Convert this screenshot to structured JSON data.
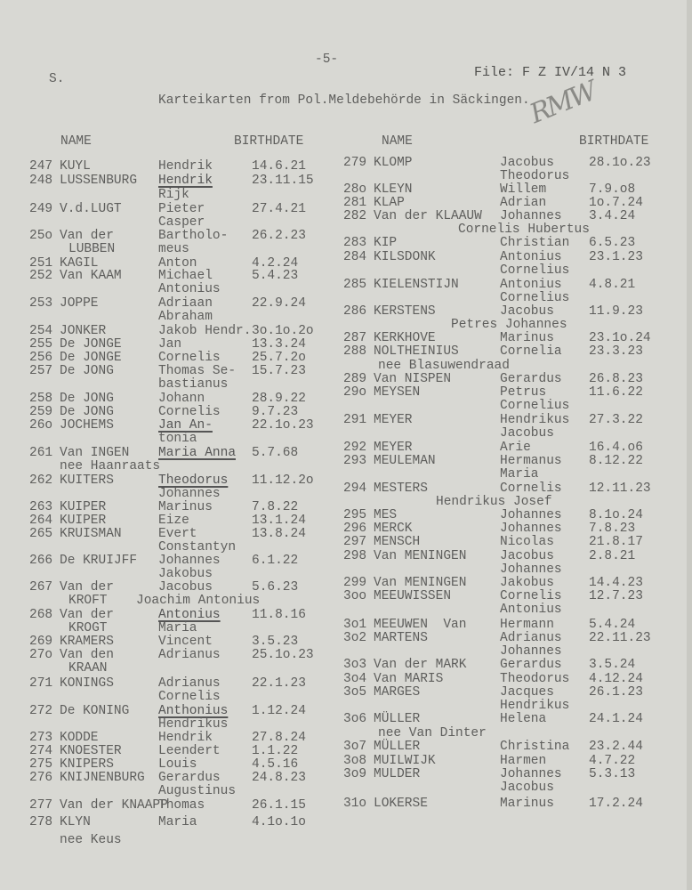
{
  "header": {
    "section_mark": "S.",
    "page_number": "-5-",
    "file_ref": "File: F Z IV/14 N 3",
    "title": "Karteikarten from Pol.Meldebehörde in Säckingen.",
    "handwritten_initials": "RMW"
  },
  "column_headers": {
    "left_name": "NAME",
    "left_birthdate": "BIRTHDATE",
    "right_name": "NAME",
    "right_birthdate": "BIRTHDATE"
  },
  "left_column": [
    {
      "no": "247",
      "surname": "KUYL",
      "given": "Hendrik",
      "birthdate": "14.6.21"
    },
    {
      "no": "248",
      "surname": "LUSSENBURG",
      "given": "Hendrik",
      "birthdate": "23.11.15",
      "underlined": true,
      "lines": [
        {
          "given": "Rijk"
        }
      ]
    },
    {
      "no": "249",
      "surname": "V.d.LUGT",
      "given": "Pieter",
      "birthdate": "27.4.21",
      "lines": [
        {
          "given": "Casper"
        }
      ]
    },
    {
      "no": "25o",
      "surname": "Van der",
      "given": "Bartholo-",
      "birthdate": "26.2.23",
      "lines": [
        {
          "surname": "LUBBEN",
          "given": "meus"
        }
      ]
    },
    {
      "no": "251",
      "surname": "KAGIL",
      "given": "Anton",
      "birthdate": "4.2.24"
    },
    {
      "no": "252",
      "surname": "Van KAAM",
      "given": "Michael",
      "birthdate": "5.4.23",
      "lines": [
        {
          "given": "Antonius"
        }
      ]
    },
    {
      "no": "253",
      "surname": "JOPPE",
      "given": "Adriaan",
      "birthdate": "22.9.24",
      "lines": [
        {
          "given": "Abraham"
        }
      ]
    },
    {
      "no": "254",
      "surname": "JONKER",
      "given": "Jakob Hendr.",
      "birthdate": "3o.1o.2o"
    },
    {
      "no": "255",
      "surname": "De JONGE",
      "given": "Jan",
      "birthdate": "13.3.24"
    },
    {
      "no": "256",
      "surname": "De JONGE",
      "given": "Cornelis",
      "birthdate": "25.7.2o"
    },
    {
      "no": "257",
      "surname": "De JONG",
      "given": "Thomas Se-",
      "birthdate": "15.7.23",
      "lines": [
        {
          "given": "bastianus"
        }
      ]
    },
    {
      "no": "258",
      "surname": "De JONG",
      "given": "Johann",
      "birthdate": "28.9.22"
    },
    {
      "no": "259",
      "surname": "De JONG",
      "given": "Cornelis",
      "birthdate": "9.7.23"
    },
    {
      "no": "26o",
      "surname": "JOCHEMS",
      "given": "Jan An-",
      "birthdate": "22.1o.23",
      "underlined": true,
      "lines": [
        {
          "given": "tonia"
        }
      ]
    },
    {
      "no": "261",
      "surname": "Van INGEN",
      "given": "Maria Anna",
      "birthdate": "5.7.68",
      "underlined": true,
      "lines": [
        {
          "maiden_name": "nee Haanraats"
        }
      ]
    },
    {
      "no": "262",
      "surname": "KUITERS",
      "given": "Theodorus",
      "birthdate": "11.12.2o",
      "underlined": true,
      "lines": [
        {
          "given": "Johannes"
        }
      ]
    },
    {
      "no": "263",
      "surname": "KUIPER",
      "given": "Marinus",
      "birthdate": "7.8.22"
    },
    {
      "no": "264",
      "surname": "KUIPER",
      "given": "Eize",
      "birthdate": "13.1.24"
    },
    {
      "no": "265",
      "surname": "KRUISMAN",
      "given": "Evert",
      "birthdate": "13.8.24",
      "lines": [
        {
          "given": "Constantyn"
        }
      ]
    },
    {
      "no": "266",
      "surname": "De KRUIJFF",
      "given": "Johannes",
      "birthdate": "6.1.22",
      "lines": [
        {
          "given": "Jakobus"
        }
      ]
    },
    {
      "no": "267",
      "surname": "Van der",
      "given": "Jacobus",
      "birthdate": "5.6.23",
      "lines": [
        {
          "surname": "KROFT",
          "given_wide": "Joachim Antonius"
        }
      ]
    },
    {
      "no": "268",
      "surname": "Van der",
      "given": "Antonius",
      "birthdate": "11.8.16",
      "underlined": true,
      "lines": [
        {
          "surname": "KROGT",
          "given": "Maria"
        }
      ]
    },
    {
      "no": "269",
      "surname": "KRAMERS",
      "given": "Vincent",
      "birthdate": "3.5.23"
    },
    {
      "no": "27o",
      "surname": "Van den",
      "given": "Adrianus",
      "birthdate": "25.1o.23",
      "lines": [
        {
          "surname": "KRAAN"
        }
      ]
    },
    {
      "no": "271",
      "surname": "KONINGS",
      "given": "Adrianus",
      "birthdate": "22.1.23",
      "lines": [
        {
          "given": "Cornelis"
        }
      ]
    },
    {
      "no": "272",
      "surname": "De KONING",
      "given": "Anthonius",
      "birthdate": "1.12.24",
      "underlined": true,
      "lines": [
        {
          "given": "Hendrikus"
        }
      ]
    },
    {
      "no": "273",
      "surname": "KODDE",
      "given": "Hendrik",
      "birthdate": "27.8.24"
    },
    {
      "no": "274",
      "surname": "KNOESTER",
      "given": "Leendert",
      "birthdate": "1.1.22"
    },
    {
      "no": "275",
      "surname": "KNIPERS",
      "given": "Louis",
      "birthdate": "4.5.16"
    },
    {
      "no": "276",
      "surname": "KNIJNENBURG",
      "given": "Gerardus",
      "birthdate": "24.8.23",
      "lines": [
        {
          "given": "Augustinus"
        }
      ]
    },
    {
      "no": "277",
      "surname": "Van der KNAAPP",
      "given": "Thomas",
      "birthdate": "26.1.15"
    },
    {
      "no": "278",
      "surname": "KLYN",
      "given": "Maria",
      "birthdate": "4.1o.1o",
      "lines": [
        {
          "maiden_name": "nee Keus"
        }
      ]
    }
  ],
  "right_column": [
    {
      "no": "279",
      "surname": "KLOMP",
      "given": "Jacobus",
      "birthdate": "28.1o.23",
      "lines": [
        {
          "given": "Theodorus"
        }
      ]
    },
    {
      "no": "28o",
      "surname": "KLEYN",
      "given": "Willem",
      "birthdate": "7.9.o8"
    },
    {
      "no": "281",
      "surname": "KLAP",
      "given": "Adrian",
      "birthdate": "1o.7.24"
    },
    {
      "no": "282",
      "surname": "Van der KLAAUW",
      "given": "Johannes",
      "birthdate": "3.4.24",
      "lines": [
        {
          "given_wide": "Cornelis Hubertus"
        }
      ]
    },
    {
      "no": "283",
      "surname": "KIP",
      "given": "Christian",
      "birthdate": "6.5.23"
    },
    {
      "no": "284",
      "surname": "KILSDONK",
      "given": "Antonius",
      "birthdate": "23.1.23",
      "lines": [
        {
          "given": "Cornelius"
        }
      ]
    },
    {
      "no": "285",
      "surname": "KIELENSTIJN",
      "given": "Antonius",
      "birthdate": "4.8.21",
      "lines": [
        {
          "given": "Cornelius"
        }
      ]
    },
    {
      "no": "286",
      "surname": "KERSTENS",
      "given": "Jacobus",
      "birthdate": "11.9.23",
      "lines": [
        {
          "given_wide": "Petres Johannes"
        }
      ]
    },
    {
      "no": "287",
      "surname": "KERKHOVE",
      "given": "Marinus",
      "birthdate": "23.1o.24"
    },
    {
      "no": "288",
      "surname": "NOLTHEINIUS",
      "given": "Cornelia",
      "birthdate": "23.3.23",
      "lines": [
        {
          "maiden_name": "nee Blasuwendraad"
        }
      ]
    },
    {
      "no": "289",
      "surname": "Van NISPEN",
      "given": "Gerardus",
      "birthdate": "26.8.23"
    },
    {
      "no": "29o",
      "surname": "MEYSEN",
      "given": "Petrus",
      "birthdate": "11.6.22",
      "lines": [
        {
          "given": "Cornelius"
        }
      ]
    },
    {
      "no": "291",
      "surname": "MEYER",
      "given": "Hendrikus",
      "birthdate": "27.3.22",
      "lines": [
        {
          "given": "Jacobus"
        }
      ]
    },
    {
      "no": "292",
      "surname": "MEYER",
      "given": "Arie",
      "birthdate": "16.4.o6"
    },
    {
      "no": "293",
      "surname": "MEULEMAN",
      "given": "Hermanus",
      "birthdate": "8.12.22",
      "lines": [
        {
          "given": "Maria"
        }
      ]
    },
    {
      "no": "294",
      "surname": "MESTERS",
      "given": "Cornelis",
      "birthdate": "12.11.23",
      "lines": [
        {
          "given_wide": "Hendrikus Josef"
        }
      ]
    },
    {
      "no": "295",
      "surname": "MES",
      "given": "Johannes",
      "birthdate": "8.1o.24"
    },
    {
      "no": "296",
      "surname": "MERCK",
      "given": "Johannes",
      "birthdate": "7.8.23"
    },
    {
      "no": "297",
      "surname": "MENSCH",
      "given": "Nicolas",
      "birthdate": "21.8.17"
    },
    {
      "no": "298",
      "surname": "Van MENINGEN",
      "given": "Jacobus",
      "birthdate": "2.8.21",
      "lines": [
        {
          "given": "Johannes"
        }
      ]
    },
    {
      "no": "299",
      "surname": "Van MENINGEN",
      "given": "Jakobus",
      "birthdate": "14.4.23"
    },
    {
      "no": "3oo",
      "surname": "MEEUWISSEN",
      "given": "Cornelis",
      "birthdate": "12.7.23",
      "lines": [
        {
          "given": "Antonius"
        }
      ]
    },
    {
      "no": "3o1",
      "surname": "MEEUWEN  Van",
      "given": "Hermann",
      "birthdate": "5.4.24"
    },
    {
      "no": "3o2",
      "surname": "MARTENS",
      "given": "Adrianus",
      "birthdate": "22.11.23",
      "lines": [
        {
          "given": "Johannes"
        }
      ]
    },
    {
      "no": "3o3",
      "surname": "Van der MARK",
      "given": "Gerardus",
      "birthdate": "3.5.24"
    },
    {
      "no": "3o4",
      "surname": "Van MARIS",
      "given": "Theodorus",
      "birthdate": "4.12.24"
    },
    {
      "no": "3o5",
      "surname": "MARGES",
      "given": "Jacques",
      "birthdate": "26.1.23",
      "lines": [
        {
          "given": "Hendrikus"
        }
      ]
    },
    {
      "no": "3o6",
      "surname": "MÜLLER",
      "given": "Helena",
      "birthdate": "24.1.24",
      "lines": [
        {
          "maiden_name": "nee Van Dinter"
        }
      ]
    },
    {
      "no": "3o7",
      "surname": "MÜLLER",
      "given": "Christina",
      "birthdate": "23.2.44"
    },
    {
      "no": "3o8",
      "surname": "MUILWIJK",
      "given": "Harmen",
      "birthdate": "4.7.22"
    },
    {
      "no": "3o9",
      "surname": "MULDER",
      "given": "Johannes",
      "birthdate": "5.3.13",
      "lines": [
        {
          "given": "Jacobus"
        }
      ]
    },
    {
      "no": "31o",
      "surname": "LOKERSE",
      "given": "Marinus",
      "birthdate": "17.2.24"
    }
  ]
}
